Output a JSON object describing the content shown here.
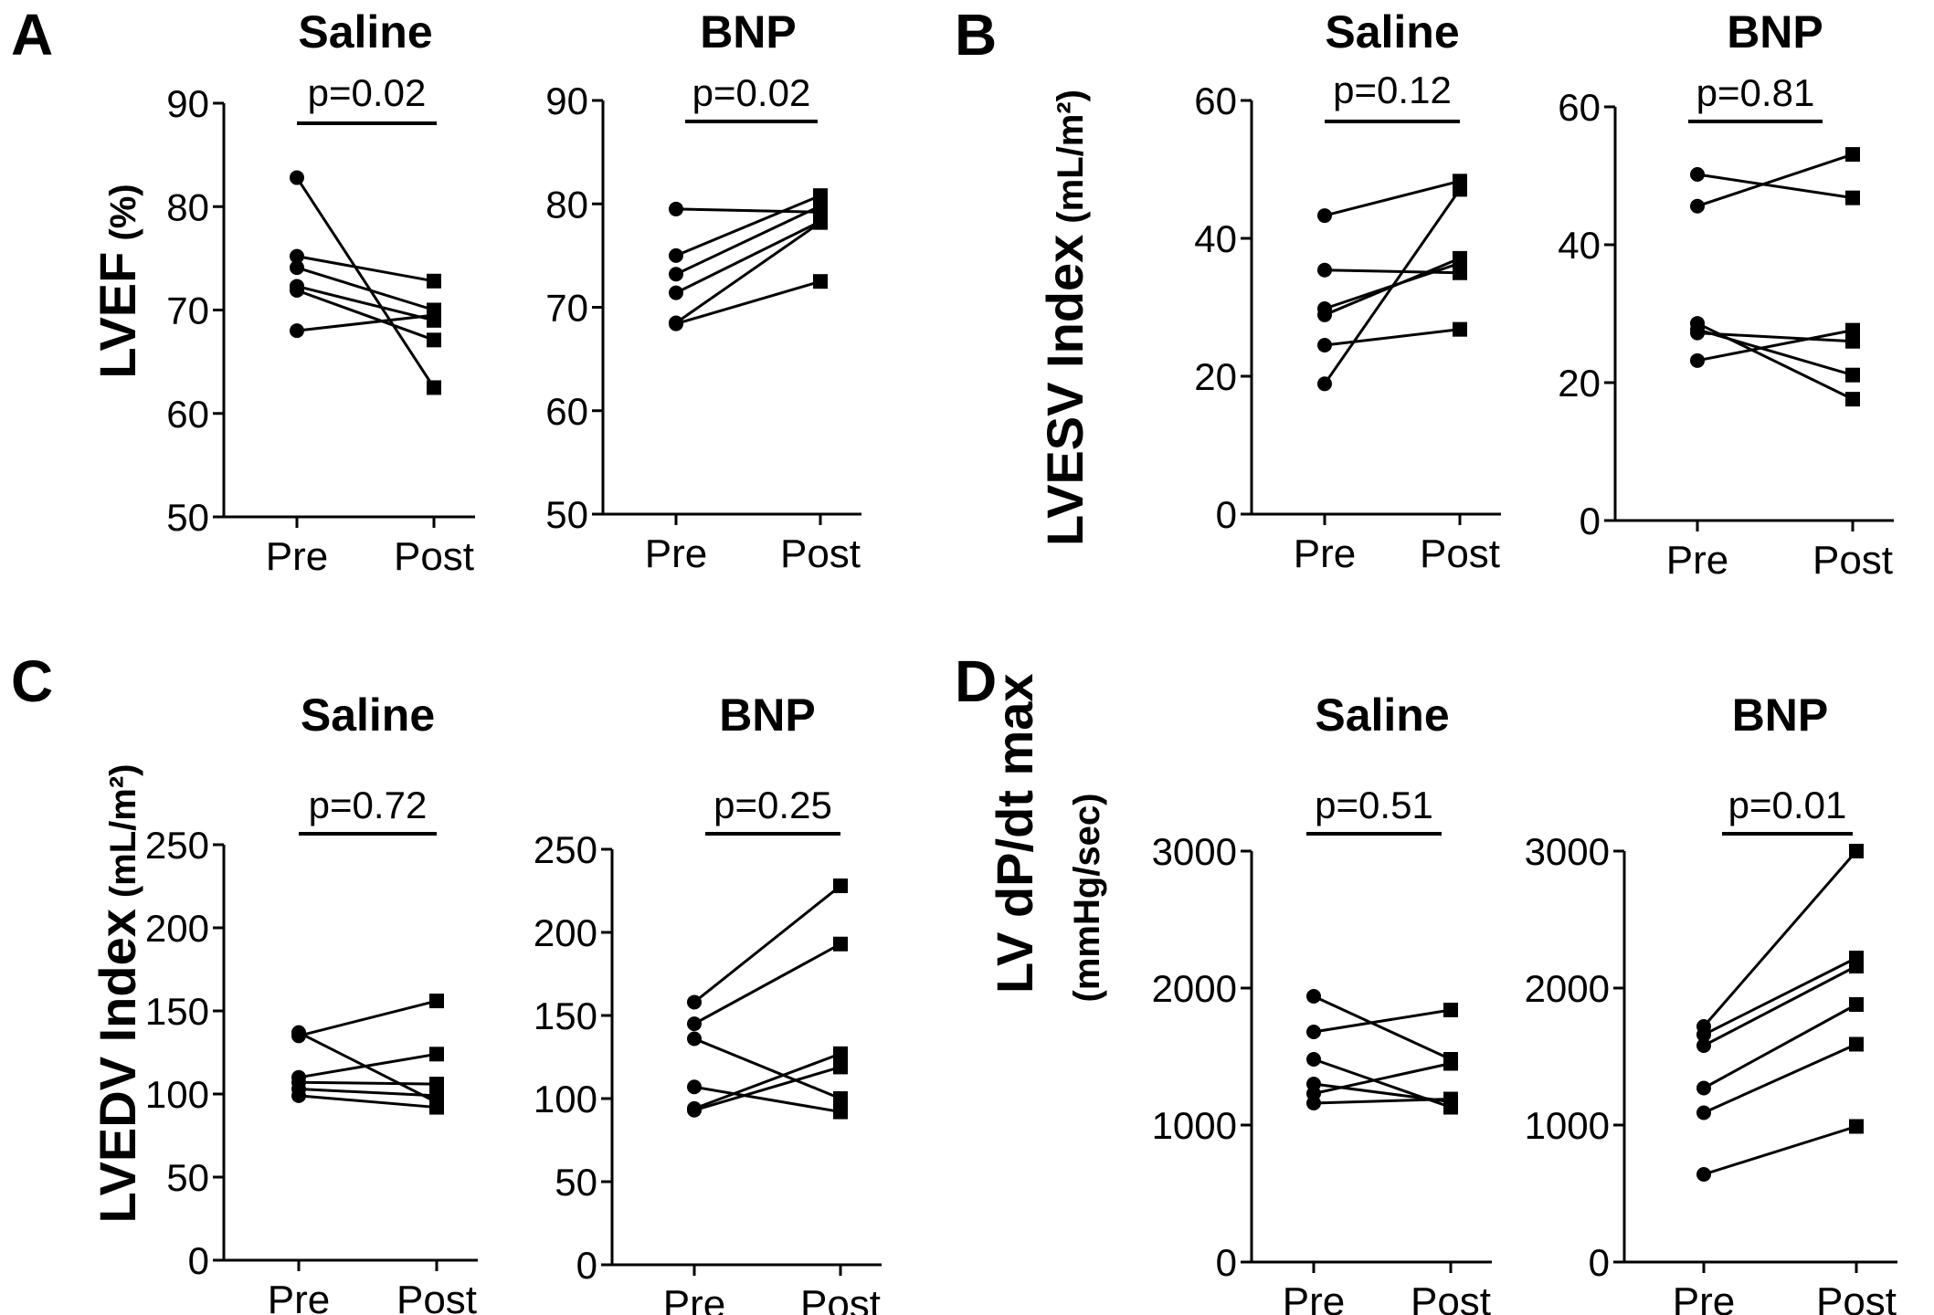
{
  "panels": [
    {
      "letter": "A",
      "ylabel": "LVEF",
      "yunit": "(%)"
    },
    {
      "letter": "B",
      "ylabel": "LVESV Index",
      "yunit": "(mL/m²)"
    },
    {
      "letter": "C",
      "ylabel": "LVEDV Index",
      "yunit": "(mL/m²)"
    },
    {
      "letter": "D",
      "ylabel": "LV dP/dt max",
      "yunit": "(mmHg/sec)"
    }
  ],
  "chart_data": [
    {
      "type": "line",
      "panel": "A",
      "title": "Saline",
      "p": "p=0.02",
      "categories": [
        "Pre",
        "Post"
      ],
      "ylim": [
        50,
        90
      ],
      "yticks": [
        50,
        60,
        70,
        80,
        90
      ],
      "series": [
        {
          "values": [
            82.8,
            62.5
          ]
        },
        {
          "values": [
            75.2,
            72.8
          ]
        },
        {
          "values": [
            74.1,
            70.0
          ]
        },
        {
          "values": [
            72.3,
            69.0
          ]
        },
        {
          "values": [
            71.9,
            67.1
          ]
        },
        {
          "values": [
            68.0,
            69.5
          ]
        }
      ]
    },
    {
      "type": "line",
      "panel": "A",
      "title": "BNP",
      "p": "p=0.02",
      "categories": [
        "Pre",
        "Post"
      ],
      "ylim": [
        50,
        90
      ],
      "yticks": [
        50,
        60,
        70,
        80,
        90
      ],
      "series": [
        {
          "values": [
            79.5,
            79.2
          ]
        },
        {
          "values": [
            75.0,
            80.8
          ]
        },
        {
          "values": [
            73.2,
            79.8
          ]
        },
        {
          "values": [
            71.4,
            78.3
          ]
        },
        {
          "values": [
            68.5,
            78.2
          ]
        },
        {
          "values": [
            68.4,
            72.5
          ]
        }
      ]
    },
    {
      "type": "line",
      "panel": "B",
      "title": "Saline",
      "p": "p=0.12",
      "categories": [
        "Pre",
        "Post"
      ],
      "ylim": [
        0,
        60
      ],
      "yticks": [
        0,
        20,
        40,
        60
      ],
      "series": [
        {
          "values": [
            43.3,
            48.3
          ]
        },
        {
          "values": [
            35.4,
            35.0
          ]
        },
        {
          "values": [
            29.8,
            36.4
          ]
        },
        {
          "values": [
            28.9,
            37.1
          ]
        },
        {
          "values": [
            24.5,
            26.8
          ]
        },
        {
          "values": [
            18.9,
            47.1
          ]
        }
      ]
    },
    {
      "type": "line",
      "panel": "B",
      "title": "BNP",
      "p": "p=0.81",
      "categories": [
        "Pre",
        "Post"
      ],
      "ylim": [
        0,
        60
      ],
      "yticks": [
        0,
        20,
        40,
        60
      ],
      "series": [
        {
          "values": [
            50.2,
            46.8
          ]
        },
        {
          "values": [
            45.6,
            53.1
          ]
        },
        {
          "values": [
            28.6,
            17.6
          ]
        },
        {
          "values": [
            27.7,
            21.1
          ]
        },
        {
          "values": [
            27.2,
            26.0
          ]
        },
        {
          "values": [
            23.2,
            27.6
          ]
        }
      ]
    },
    {
      "type": "line",
      "panel": "C",
      "title": "Saline",
      "p": "p=0.72",
      "categories": [
        "Pre",
        "Post"
      ],
      "ylim": [
        0,
        250
      ],
      "yticks": [
        0,
        50,
        100,
        150,
        200,
        250
      ],
      "series": [
        {
          "values": [
            137,
            95
          ]
        },
        {
          "values": [
            135,
            156
          ]
        },
        {
          "values": [
            110,
            124
          ]
        },
        {
          "values": [
            107,
            106
          ]
        },
        {
          "values": [
            103,
            99
          ]
        },
        {
          "values": [
            99,
            92
          ]
        }
      ]
    },
    {
      "type": "line",
      "panel": "C",
      "title": "BNP",
      "p": "p=0.25",
      "categories": [
        "Pre",
        "Post"
      ],
      "ylim": [
        0,
        250
      ],
      "yticks": [
        0,
        50,
        100,
        150,
        200,
        250
      ],
      "series": [
        {
          "values": [
            158,
            228
          ]
        },
        {
          "values": [
            145,
            193
          ]
        },
        {
          "values": [
            136,
            100
          ]
        },
        {
          "values": [
            107,
            92
          ]
        },
        {
          "values": [
            94,
            127
          ]
        },
        {
          "values": [
            93,
            119
          ]
        }
      ]
    },
    {
      "type": "line",
      "panel": "D",
      "title": "Saline",
      "p": "p=0.51",
      "categories": [
        "Pre",
        "Post"
      ],
      "ylim": [
        0,
        3000
      ],
      "yticks": [
        0,
        1000,
        2000,
        3000
      ],
      "series": [
        {
          "values": [
            1940,
            1480
          ]
        },
        {
          "values": [
            1680,
            1840
          ]
        },
        {
          "values": [
            1480,
            1130
          ]
        },
        {
          "values": [
            1300,
            1170
          ]
        },
        {
          "values": [
            1230,
            1450
          ]
        },
        {
          "values": [
            1160,
            1190
          ]
        }
      ]
    },
    {
      "type": "line",
      "panel": "D",
      "title": "BNP",
      "p": "p=0.01",
      "categories": [
        "Pre",
        "Post"
      ],
      "ylim": [
        0,
        3000
      ],
      "yticks": [
        0,
        1000,
        2000,
        3000
      ],
      "series": [
        {
          "values": [
            1720,
            3000
          ]
        },
        {
          "values": [
            1660,
            2220
          ]
        },
        {
          "values": [
            1580,
            2160
          ]
        },
        {
          "values": [
            1270,
            1880
          ]
        },
        {
          "values": [
            1090,
            1590
          ]
        },
        {
          "values": [
            640,
            990
          ]
        }
      ]
    }
  ]
}
